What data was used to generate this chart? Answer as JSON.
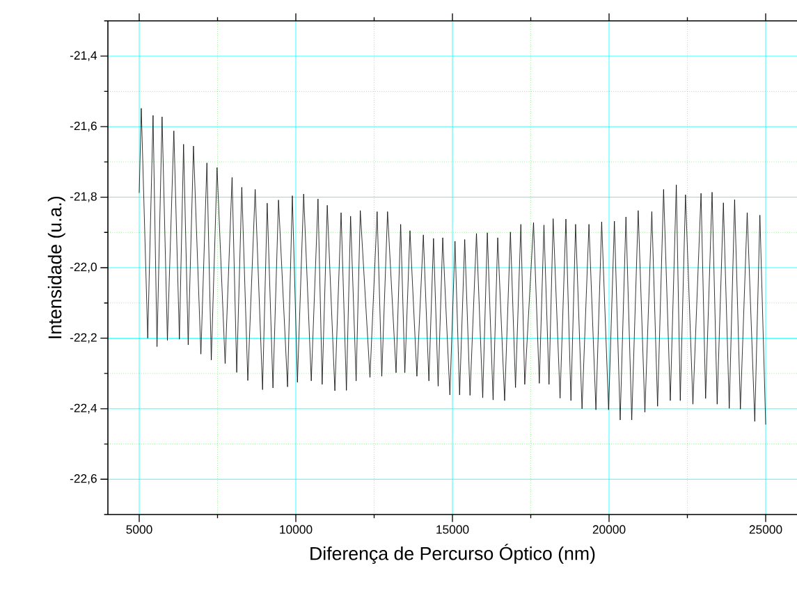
{
  "chart_data": {
    "type": "line",
    "xlabel": "Diferença de Percurso Óptico (nm)",
    "ylabel": "Intensidade (u.a.)",
    "x": [
      5000,
      5066,
      5272,
      5442,
      5568,
      5730,
      5900,
      6106,
      6283,
      6416,
      6564,
      6733,
      6969,
      7161,
      7301,
      7485,
      7743,
      7965,
      8113,
      8275,
      8467,
      8702,
      8938,
      9086,
      9270,
      9447,
      9735,
      9889,
      10051,
      10250,
      10493,
      10708,
      10841,
      11003,
      11246,
      11445,
      11615,
      11748,
      11925,
      12058,
      12367,
      12596,
      12744,
      12928,
      13200,
      13347,
      13480,
      13644,
      13865,
      14071,
      14248,
      14396,
      14543,
      14690,
      14918,
      15082,
      15228,
      15392,
      15561,
      15767,
      15967,
      16113,
      16298,
      16445,
      16666,
      16851,
      17013,
      17184,
      17308,
      17589,
      17773,
      17921,
      18083,
      18215,
      18436,
      18622,
      18783,
      18931,
      19137,
      19358,
      19580,
      19764,
      19985,
      20170,
      20355,
      20539,
      20724,
      20930,
      21144,
      21365,
      21549,
      21741,
      21955,
      22147,
      22273,
      22440,
      22677,
      22936,
      23082,
      23289,
      23451,
      23650,
      23837,
      24009,
      24193,
      24410,
      24652,
      24815,
      25000
    ],
    "series": [
      {
        "color": "#000000",
        "values": [
          -21.788,
          -21.548,
          -22.2,
          -21.568,
          -22.224,
          -21.572,
          -22.206,
          -21.612,
          -22.203,
          -21.65,
          -22.219,
          -21.655,
          -22.245,
          -21.703,
          -22.262,
          -21.716,
          -22.272,
          -21.744,
          -22.297,
          -21.772,
          -22.32,
          -21.778,
          -22.346,
          -21.817,
          -22.341,
          -21.808,
          -22.338,
          -21.796,
          -22.325,
          -21.791,
          -22.321,
          -21.805,
          -22.331,
          -21.823,
          -22.349,
          -21.844,
          -22.348,
          -21.854,
          -22.321,
          -21.838,
          -22.311,
          -21.841,
          -22.308,
          -21.841,
          -22.298,
          -21.877,
          -22.298,
          -21.895,
          -22.308,
          -21.907,
          -22.321,
          -21.917,
          -22.336,
          -21.915,
          -22.361,
          -21.925,
          -22.361,
          -21.92,
          -22.362,
          -21.903,
          -22.369,
          -21.901,
          -22.375,
          -21.915,
          -22.377,
          -21.899,
          -22.34,
          -21.877,
          -22.331,
          -21.872,
          -22.328,
          -21.879,
          -22.331,
          -21.861,
          -22.37,
          -21.862,
          -22.377,
          -21.877,
          -22.4,
          -21.877,
          -22.403,
          -21.87,
          -22.403,
          -21.868,
          -22.432,
          -21.856,
          -22.432,
          -21.838,
          -22.41,
          -21.841,
          -22.393,
          -21.778,
          -22.377,
          -21.765,
          -22.377,
          -21.793,
          -22.387,
          -21.789,
          -22.371,
          -21.786,
          -22.387,
          -21.816,
          -22.399,
          -21.807,
          -22.401,
          -21.844,
          -22.436,
          -21.851,
          -22.445
        ]
      }
    ],
    "xlim": [
      4000,
      26000
    ],
    "ylim": [
      -22.7,
      -21.3
    ],
    "xticks": [
      5000,
      {
        "value": 7500,
        "label": null
      },
      10000,
      {
        "value": 12500,
        "label": null
      },
      15000,
      {
        "value": 17500,
        "label": null
      },
      20000,
      {
        "value": 22500,
        "label": null
      },
      25000
    ],
    "yticks": [
      {
        "value": -22.7,
        "label": null
      },
      {
        "value": -22.6,
        "label": "-22,6"
      },
      {
        "value": -22.5,
        "label": null
      },
      {
        "value": -22.4,
        "label": "-22,4"
      },
      {
        "value": -22.3,
        "label": null
      },
      {
        "value": -22.2,
        "label": "-22,2"
      },
      {
        "value": -22.1,
        "label": null
      },
      {
        "value": -22.0,
        "label": "-22,0"
      },
      {
        "value": -21.9,
        "label": null
      },
      {
        "value": -21.8,
        "label": "-21,8"
      },
      {
        "value": -21.7,
        "label": null
      },
      {
        "value": -21.6,
        "label": "-21,6"
      },
      {
        "value": -21.5,
        "label": null
      },
      {
        "value": -21.4,
        "label": "-21,4"
      },
      {
        "value": -21.3,
        "label": null
      }
    ],
    "grid": true
  }
}
